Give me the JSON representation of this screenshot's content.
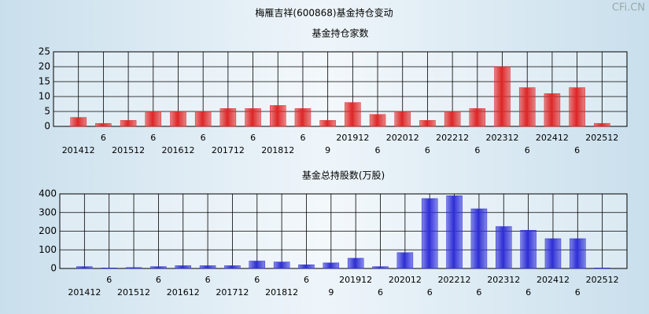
{
  "header": {
    "title": "梅雁吉祥(600868)基金持仓变动",
    "watermark": "CFi.CN"
  },
  "chart_data": [
    {
      "type": "bar",
      "title": "基金持仓家数",
      "categories": [
        "201412",
        "6",
        "201512",
        "6",
        "201612",
        "6",
        "201712",
        "6",
        "201812",
        "6",
        "9",
        "201912",
        "6",
        "202012",
        "6",
        "202212",
        "6",
        "202312",
        "6",
        "202412",
        "6",
        "202512"
      ],
      "values": [
        3,
        1,
        2,
        5,
        5,
        5,
        6,
        6,
        7,
        6,
        2,
        8,
        4,
        5,
        2,
        5,
        6,
        20,
        13,
        11,
        13,
        1
      ],
      "color": "#e02828",
      "ylim": [
        0,
        25
      ],
      "yticks": [
        0,
        5,
        10,
        15,
        20,
        25
      ],
      "grid": true
    },
    {
      "type": "bar",
      "title": "基金总持股数(万股)",
      "categories": [
        "201412",
        "6",
        "201512",
        "6",
        "201612",
        "6",
        "201712",
        "6",
        "201812",
        "6",
        "9",
        "201912",
        "6",
        "202012",
        "6",
        "202212",
        "6",
        "202312",
        "6",
        "202412",
        "6",
        "202512"
      ],
      "values": [
        10,
        3,
        5,
        10,
        15,
        15,
        15,
        40,
        35,
        20,
        30,
        55,
        10,
        85,
        375,
        390,
        320,
        225,
        205,
        160,
        160,
        3
      ],
      "color": "#3030d8",
      "ylim": [
        0,
        400
      ],
      "yticks": [
        0,
        100,
        200,
        300,
        400
      ],
      "grid": true
    }
  ]
}
